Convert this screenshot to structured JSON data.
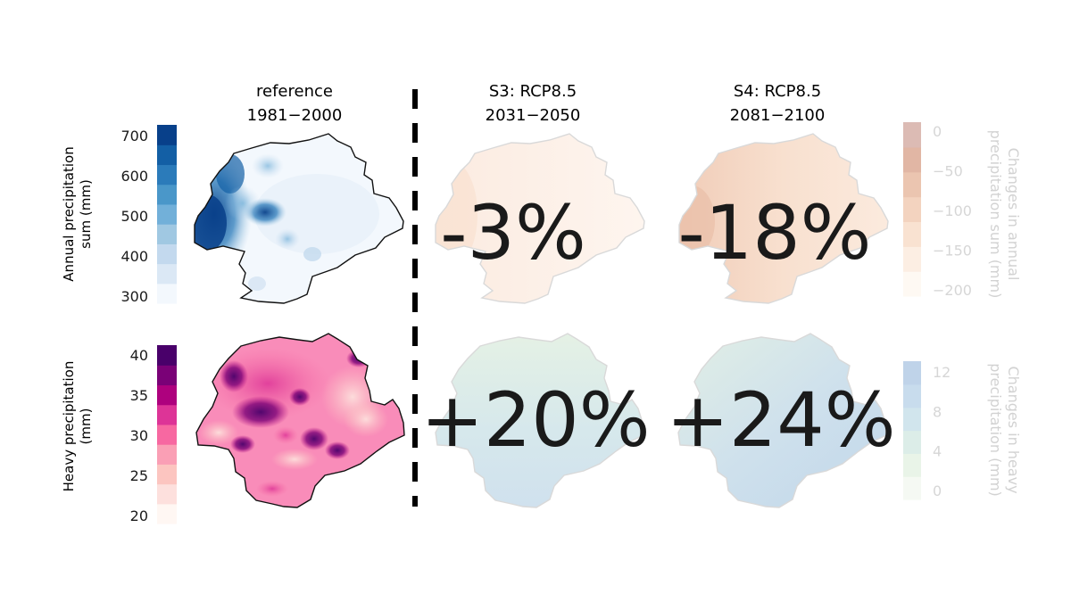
{
  "columns": [
    {
      "title_line1": "reference",
      "title_line2": "1981−2000"
    },
    {
      "title_line1": "S3: RCP8.5",
      "title_line2": "2031−2050"
    },
    {
      "title_line1": "S4: RCP8.5",
      "title_line2": "2081−2100"
    }
  ],
  "rows": [
    {
      "ylabel_line1": "Annual precipitation",
      "ylabel_line2": "sum (mm)",
      "ref_colorbar": {
        "ticks": [
          "700",
          "600",
          "500",
          "400",
          "300"
        ],
        "colors": [
          "#f3f8fd",
          "#dbe8f5",
          "#c3d9ee",
          "#a0c8e2",
          "#72b0d9",
          "#4a97c9",
          "#2b7bba",
          "#135fa5",
          "#08408a"
        ]
      },
      "changes": [
        "-3%",
        "-18%"
      ],
      "change_colorbar": {
        "label_line1": "Changes in annual",
        "label_line2": "precipitation sum (mm)",
        "ticks": [
          "0",
          "−50",
          "−100",
          "−150",
          "−200"
        ],
        "colors": [
          "#fef8f2",
          "#fcecdf",
          "#f8ddc9",
          "#f2ccb5",
          "#e8bba3",
          "#dcaa95",
          "#d6b0a8"
        ]
      }
    },
    {
      "ylabel_line1": "Heavy precipitation",
      "ylabel_line2": "(mm)",
      "ref_colorbar": {
        "ticks": [
          "40",
          "35",
          "30",
          "25",
          "20"
        ],
        "colors": [
          "#fff7f3",
          "#fde0dd",
          "#fcc5c0",
          "#fa9fb5",
          "#f768a1",
          "#dd3497",
          "#ae017e",
          "#7a0177",
          "#49006a"
        ]
      },
      "changes": [
        "+20%",
        "+24%"
      ],
      "change_colorbar": {
        "label_line1": "Changes in heavy",
        "label_line2": "precipitation (mm)",
        "ticks": [
          "12",
          "8",
          "4",
          "0"
        ],
        "colors": [
          "#f4f9f2",
          "#e6f3e4",
          "#d6ebe4",
          "#c9e1ea",
          "#bfd6ea",
          "#b5cce6"
        ]
      }
    }
  ]
}
